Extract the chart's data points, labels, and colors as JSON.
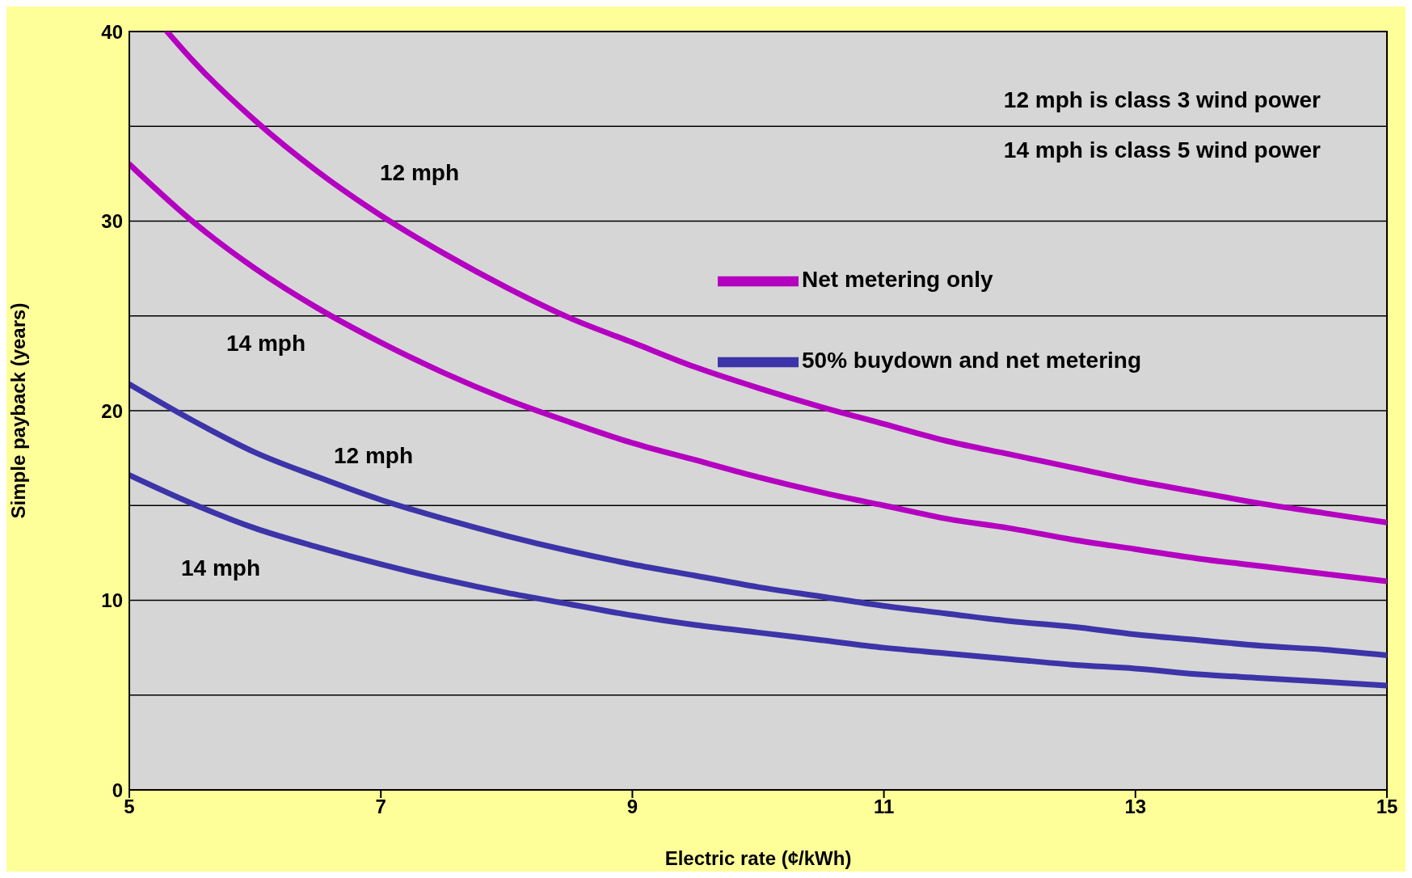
{
  "chart_data": {
    "type": "line",
    "xlabel": "Electric rate (¢/kWh)",
    "ylabel": "Simple payback (years)",
    "xlim": [
      5,
      15
    ],
    "xticks": [
      5,
      7,
      9,
      11,
      13,
      15
    ],
    "ylim": [
      0,
      40
    ],
    "yticks": [
      0,
      {
        "value": 5,
        "label": null
      },
      10,
      {
        "value": 15,
        "label": null
      },
      20,
      {
        "value": 25,
        "label": null
      },
      30,
      {
        "value": 35,
        "label": null
      },
      40
    ],
    "grid": "y",
    "legend": "top right",
    "marker": "none",
    "line_style": "solid",
    "series": [
      {
        "name": "Net metering only",
        "color": "#b400c0",
        "x": [
          5.3,
          5.5,
          6,
          6.5,
          7,
          7.5,
          8,
          8.5,
          9,
          9.5,
          10,
          10.5,
          11,
          11.5,
          12,
          12.5,
          13,
          13.5,
          14,
          14.5,
          15
        ],
        "values": [
          40.0,
          38.5,
          35.3,
          32.6,
          30.3,
          28.3,
          26.5,
          24.9,
          23.6,
          22.3,
          21.2,
          20.2,
          19.3,
          18.4,
          17.7,
          17.0,
          16.3,
          15.7,
          15.1,
          14.6,
          14.1
        ]
      },
      {
        "color": "#b400c0",
        "x": [
          5,
          5.5,
          6,
          6.5,
          7,
          7.5,
          8,
          8.5,
          9,
          9.5,
          10,
          10.5,
          11,
          11.5,
          12,
          12.5,
          13,
          13.5,
          14,
          14.5,
          15
        ],
        "values": [
          33.0,
          30.0,
          27.5,
          25.4,
          23.6,
          22.0,
          20.6,
          19.4,
          18.3,
          17.4,
          16.5,
          15.7,
          15.0,
          14.3,
          13.8,
          13.2,
          12.7,
          12.2,
          11.8,
          11.4,
          11.0
        ]
      },
      {
        "name": "50% buydown and net metering",
        "color": "#3c34a8",
        "x": [
          5,
          5.5,
          6,
          6.5,
          7,
          7.5,
          8,
          8.5,
          9,
          9.5,
          10,
          10.5,
          11,
          11.5,
          12,
          12.5,
          13,
          13.5,
          14,
          14.5,
          15
        ],
        "values": [
          21.4,
          19.5,
          17.8,
          16.5,
          15.3,
          14.3,
          13.4,
          12.6,
          11.9,
          11.3,
          10.7,
          10.2,
          9.7,
          9.3,
          8.9,
          8.6,
          8.2,
          7.9,
          7.6,
          7.4,
          7.1
        ]
      },
      {
        "color": "#3c34a8",
        "x": [
          5,
          5.5,
          6,
          6.5,
          7,
          7.5,
          8,
          8.5,
          9,
          9.5,
          10,
          10.5,
          11,
          11.5,
          12,
          12.5,
          13,
          13.5,
          14,
          14.5,
          15
        ],
        "values": [
          16.6,
          15.1,
          13.8,
          12.8,
          11.9,
          11.1,
          10.4,
          9.8,
          9.2,
          8.7,
          8.3,
          7.9,
          7.5,
          7.2,
          6.9,
          6.6,
          6.4,
          6.1,
          5.9,
          5.7,
          5.5
        ]
      }
    ],
    "annotations": [
      "12 mph is class 3 wind power",
      "14 mph is class 5 wind power",
      "12 mph",
      "14 mph",
      "12 mph",
      "14 mph"
    ]
  }
}
